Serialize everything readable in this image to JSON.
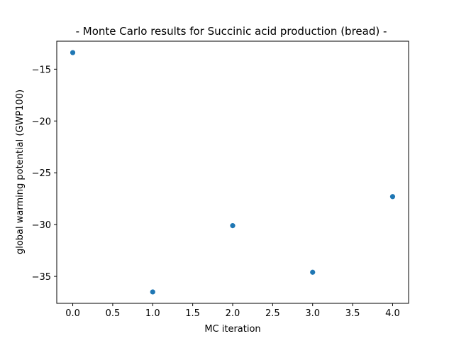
{
  "chart_data": {
    "type": "scatter",
    "title": "- Monte Carlo results for Succinic acid production (bread) -",
    "xlabel": "MC iteration",
    "ylabel": "global warming potential (GWP100)",
    "xlim": [
      -0.2,
      4.2
    ],
    "ylim": [
      -37.6,
      -12.3
    ],
    "xticks": [
      0.0,
      0.5,
      1.0,
      1.5,
      2.0,
      2.5,
      3.0,
      3.5,
      4.0
    ],
    "xtick_labels": [
      "0.0",
      "0.5",
      "1.0",
      "1.5",
      "2.0",
      "2.5",
      "3.0",
      "3.5",
      "4.0"
    ],
    "yticks": [
      -15,
      -20,
      -25,
      -30,
      -35
    ],
    "ytick_labels": [
      "−15",
      "−20",
      "−25",
      "−30",
      "−35"
    ],
    "grid": false,
    "marker_color": "#1f77b4",
    "series": [
      {
        "x": [
          0,
          1,
          2,
          3,
          4
        ],
        "y": [
          -13.4,
          -36.5,
          -30.1,
          -34.6,
          -27.3
        ]
      }
    ]
  }
}
